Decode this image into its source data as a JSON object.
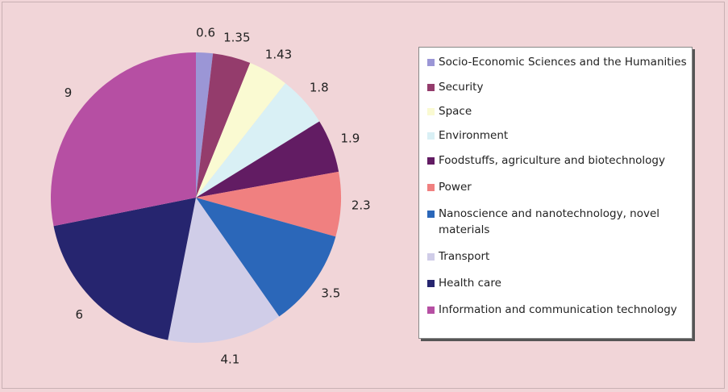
{
  "chart_data": {
    "type": "pie",
    "categories": [
      "Socio-Economic Sciences and the Humanities",
      "Security",
      "Space",
      "Environment",
      "Foodstuffs, agriculture and biotechnology",
      "Power",
      "Nanoscience and nanotechnology, novel materials",
      "Transport",
      "Health care",
      "Information and communication technology"
    ],
    "values": [
      0.6,
      1.35,
      1.43,
      1.8,
      1.9,
      2.3,
      3.5,
      4.1,
      6,
      9
    ],
    "value_labels": [
      "0.6",
      "1.35",
      "1.43",
      "1.8",
      "1.9",
      "2.3",
      "3.5",
      "4.1",
      "6",
      "9"
    ],
    "colors": [
      "#9b96d6",
      "#943c6c",
      "#fafad2",
      "#d9f0f5",
      "#621c63",
      "#f08080",
      "#2b67b9",
      "#d0cde8",
      "#26256f",
      "#b64fa3"
    ],
    "legend_position": "right",
    "start_angle": "12 o'clock",
    "direction": "clockwise"
  }
}
